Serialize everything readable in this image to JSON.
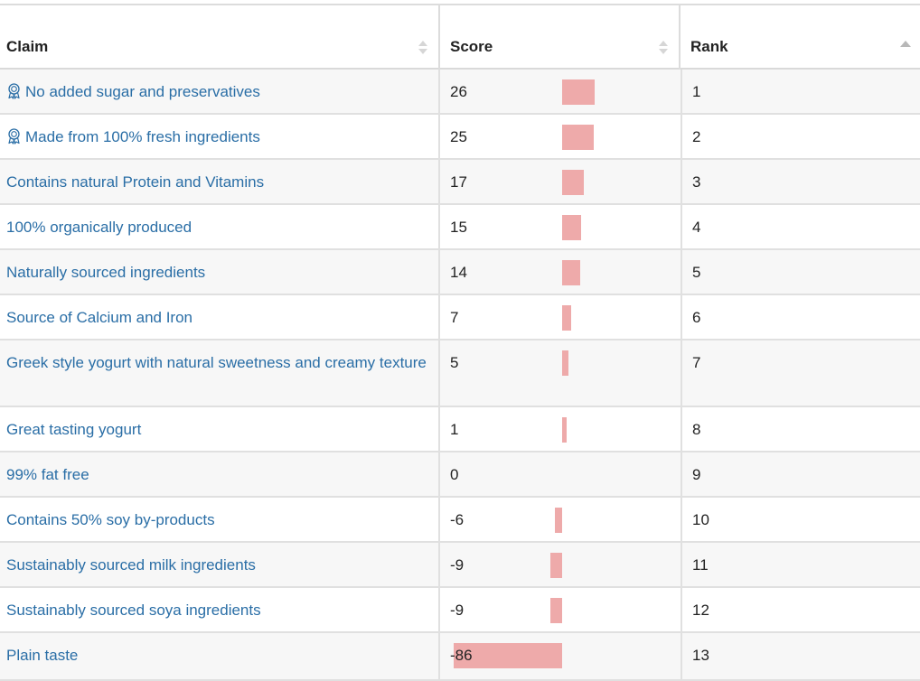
{
  "table": {
    "columns": [
      {
        "label": "Claim",
        "sort": "none"
      },
      {
        "label": "Score",
        "sort": "none"
      },
      {
        "label": "Rank",
        "sort": "ascending"
      }
    ],
    "bar_color": "#eeaaaa",
    "link_color": "#2a6ea6",
    "rows": [
      {
        "claim": "No added sugar and preservatives",
        "icon": "award-icon",
        "score": 26,
        "rank": 1
      },
      {
        "claim": "Made from 100% fresh ingredients",
        "icon": "award-icon",
        "score": 25,
        "rank": 2
      },
      {
        "claim": "Contains natural Protein and Vitamins",
        "icon": "",
        "score": 17,
        "rank": 3
      },
      {
        "claim": "100% organically produced",
        "icon": "",
        "score": 15,
        "rank": 4
      },
      {
        "claim": "Naturally sourced ingredients",
        "icon": "",
        "score": 14,
        "rank": 5
      },
      {
        "claim": "Source of Calcium and Iron",
        "icon": "",
        "score": 7,
        "rank": 6
      },
      {
        "claim": "Greek style yogurt with natural sweetness and creamy texture",
        "icon": "",
        "score": 5,
        "rank": 7
      },
      {
        "claim": "Great tasting yogurt",
        "icon": "",
        "score": 1,
        "rank": 8
      },
      {
        "claim": "99% fat free",
        "icon": "",
        "score": 0,
        "rank": 9
      },
      {
        "claim": "Contains 50% soy by-products",
        "icon": "",
        "score": -6,
        "rank": 10
      },
      {
        "claim": "Sustainably sourced milk ingredients",
        "icon": "",
        "score": -9,
        "rank": 11
      },
      {
        "claim": "Sustainably sourced soya ingredients",
        "icon": "",
        "score": -9,
        "rank": 12
      },
      {
        "claim": "Plain taste",
        "icon": "",
        "score": -86,
        "rank": 13
      }
    ]
  }
}
